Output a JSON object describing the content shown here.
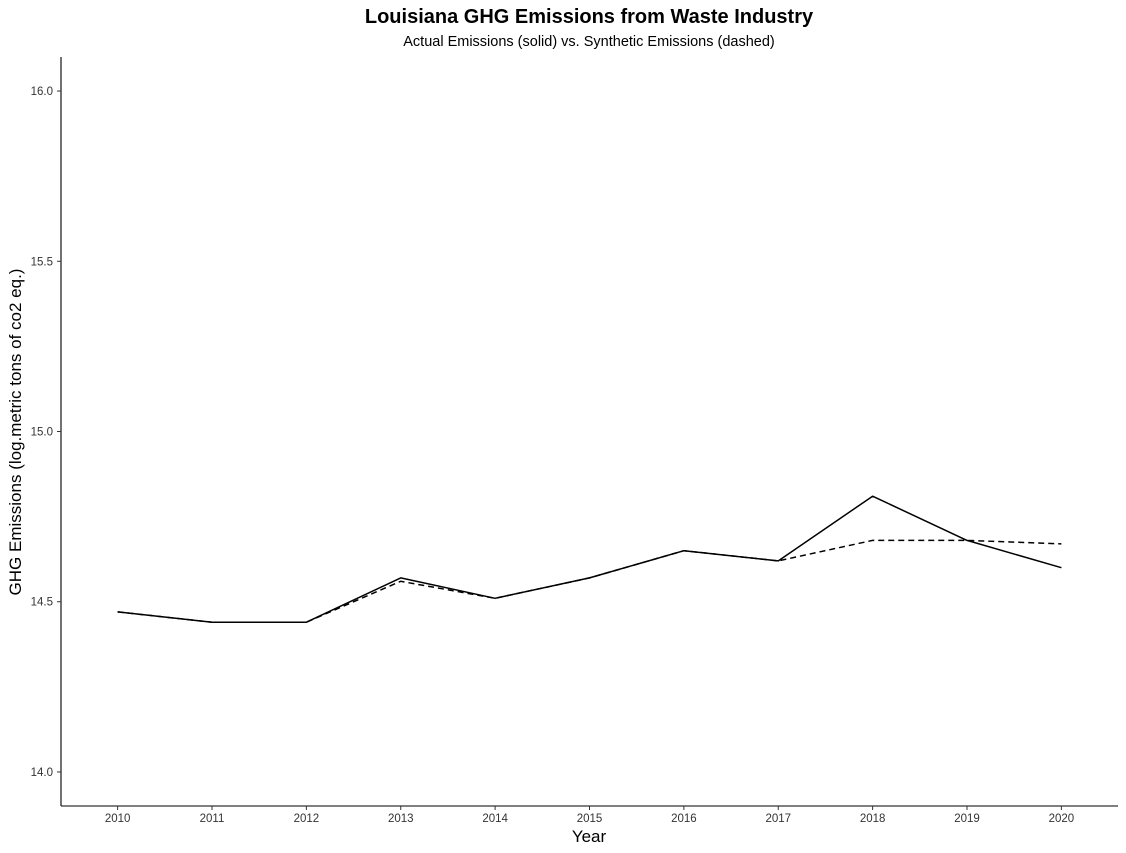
{
  "chart_data": {
    "type": "line",
    "title": "Louisiana GHG Emissions from Waste Industry",
    "subtitle": "Actual Emissions (solid) vs. Synthetic Emissions (dashed)",
    "xlabel": "Year",
    "ylabel": "GHG Emissions (log.metric tons of co2 eq.)",
    "x": [
      2010,
      2011,
      2012,
      2013,
      2014,
      2015,
      2016,
      2017,
      2018,
      2019,
      2020
    ],
    "x_ticks": [
      "2010",
      "2011",
      "2012",
      "2013",
      "2014",
      "2015",
      "2016",
      "2017",
      "2018",
      "2019",
      "2020"
    ],
    "y_ticks": [
      "14.0",
      "14.5",
      "15.0",
      "15.5",
      "16.0"
    ],
    "ylim": [
      13.9,
      16.1
    ],
    "xlim": [
      2009.4,
      2020.6
    ],
    "grid": false,
    "legend": "none",
    "series": [
      {
        "style": "solid",
        "color": "#000000",
        "values": [
          14.47,
          14.44,
          14.44,
          14.57,
          14.51,
          14.57,
          14.65,
          14.62,
          14.81,
          14.68,
          14.6
        ]
      },
      {
        "style": "dashed",
        "color": "#000000",
        "values": [
          14.47,
          14.44,
          14.44,
          14.56,
          14.51,
          14.57,
          14.65,
          14.62,
          14.68,
          14.68,
          14.67
        ]
      }
    ]
  }
}
